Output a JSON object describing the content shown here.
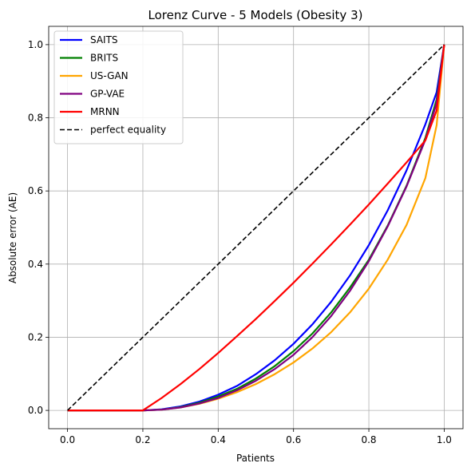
{
  "chart_data": {
    "type": "line",
    "title": "Lorenz Curve - 5 Models (Obesity 3)",
    "xlabel": "Patients",
    "ylabel": "Absolute error (AE)",
    "xlim": [
      -0.05,
      1.05
    ],
    "ylim": [
      -0.05,
      1.05
    ],
    "xticks": [
      0.0,
      0.2,
      0.4,
      0.6,
      0.8,
      1.0
    ],
    "yticks": [
      0.0,
      0.2,
      0.4,
      0.6,
      0.8,
      1.0
    ],
    "xtick_labels": [
      "0.0",
      "0.2",
      "0.4",
      "0.6",
      "0.8",
      "1.0"
    ],
    "ytick_labels": [
      "0.0",
      "0.2",
      "0.4",
      "0.6",
      "0.8",
      "1.0"
    ],
    "grid": true,
    "legend_position": "top-left",
    "x": [
      0.0,
      0.2,
      0.25,
      0.3,
      0.35,
      0.4,
      0.45,
      0.5,
      0.55,
      0.6,
      0.65,
      0.7,
      0.75,
      0.8,
      0.85,
      0.9,
      0.95,
      0.98,
      1.0
    ],
    "series": [
      {
        "name": "SAITS",
        "color": "#0000ff",
        "style": "solid",
        "y": [
          0.0,
          0.0,
          0.003,
          0.011,
          0.024,
          0.043,
          0.067,
          0.099,
          0.137,
          0.182,
          0.235,
          0.297,
          0.369,
          0.452,
          0.547,
          0.656,
          0.782,
          0.87,
          1.0
        ]
      },
      {
        "name": "BRITS",
        "color": "#008000",
        "style": "solid",
        "y": [
          0.0,
          0.0,
          0.002,
          0.009,
          0.021,
          0.038,
          0.059,
          0.087,
          0.121,
          0.162,
          0.21,
          0.268,
          0.336,
          0.412,
          0.505,
          0.614,
          0.745,
          0.85,
          1.0
        ]
      },
      {
        "name": "US-GAN",
        "color": "#ffa500",
        "style": "solid",
        "y": [
          0.0,
          0.0,
          0.002,
          0.008,
          0.018,
          0.032,
          0.05,
          0.072,
          0.099,
          0.131,
          0.169,
          0.214,
          0.268,
          0.333,
          0.412,
          0.507,
          0.635,
          0.78,
          1.0
        ]
      },
      {
        "name": "GP-VAE",
        "color": "#800080",
        "style": "solid",
        "y": [
          0.0,
          0.0,
          0.002,
          0.008,
          0.019,
          0.034,
          0.055,
          0.081,
          0.113,
          0.152,
          0.2,
          0.258,
          0.327,
          0.408,
          0.503,
          0.612,
          0.74,
          0.84,
          1.0
        ]
      },
      {
        "name": "MRNN",
        "color": "#ff0000",
        "style": "solid",
        "y": [
          0.0,
          0.0,
          0.034,
          0.072,
          0.113,
          0.157,
          0.203,
          0.25,
          0.299,
          0.349,
          0.401,
          0.454,
          0.508,
          0.563,
          0.62,
          0.678,
          0.738,
          0.82,
          1.0
        ]
      },
      {
        "name": "perfect equality",
        "color": "#000000",
        "style": "dashed",
        "y": [
          0.0,
          0.2,
          0.25,
          0.3,
          0.35,
          0.4,
          0.45,
          0.5,
          0.55,
          0.6,
          0.65,
          0.7,
          0.75,
          0.8,
          0.85,
          0.9,
          0.95,
          0.98,
          1.0
        ]
      }
    ]
  }
}
